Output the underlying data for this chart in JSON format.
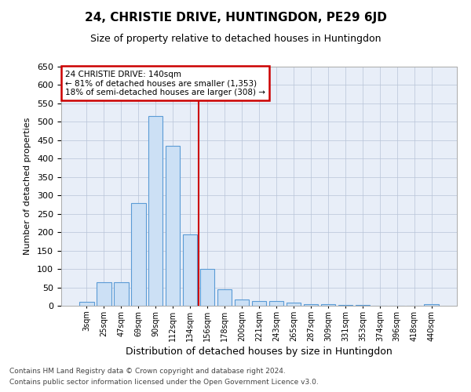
{
  "title": "24, CHRISTIE DRIVE, HUNTINGDON, PE29 6JD",
  "subtitle": "Size of property relative to detached houses in Huntingdon",
  "xlabel": "Distribution of detached houses by size in Huntingdon",
  "ylabel": "Number of detached properties",
  "footnote1": "Contains HM Land Registry data © Crown copyright and database right 2024.",
  "footnote2": "Contains public sector information licensed under the Open Government Licence v3.0.",
  "annotation_title": "24 CHRISTIE DRIVE: 140sqm",
  "annotation_line1": "← 81% of detached houses are smaller (1,353)",
  "annotation_line2": "18% of semi-detached houses are larger (308) →",
  "bar_color": "#cce0f5",
  "bar_edge_color": "#5b9bd5",
  "vline_color": "#cc0000",
  "annotation_box_color": "#cc0000",
  "background_color": "#e8eef8",
  "categories": [
    "3sqm",
    "25sqm",
    "47sqm",
    "69sqm",
    "90sqm",
    "112sqm",
    "134sqm",
    "156sqm",
    "178sqm",
    "200sqm",
    "221sqm",
    "243sqm",
    "265sqm",
    "287sqm",
    "309sqm",
    "331sqm",
    "353sqm",
    "374sqm",
    "396sqm",
    "418sqm",
    "440sqm"
  ],
  "values": [
    10,
    65,
    65,
    280,
    515,
    435,
    195,
    100,
    45,
    18,
    12,
    12,
    8,
    5,
    4,
    3,
    3,
    1,
    1,
    1,
    5
  ],
  "ylim": [
    0,
    650
  ],
  "yticks": [
    0,
    50,
    100,
    150,
    200,
    250,
    300,
    350,
    400,
    450,
    500,
    550,
    600,
    650
  ],
  "vline_x": 6.5
}
